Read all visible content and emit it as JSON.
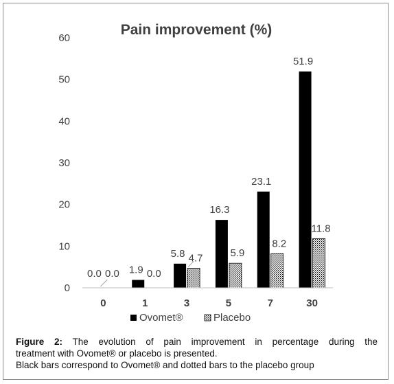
{
  "chart_data": {
    "type": "bar",
    "title": "Pain improvement (%)",
    "categories": [
      "0",
      "1",
      "3",
      "5",
      "7",
      "30"
    ],
    "series": [
      {
        "name": "Ovomet®",
        "values": [
          0.0,
          1.9,
          5.8,
          16.3,
          23.1,
          51.9
        ],
        "labels": [
          "0.0",
          "1.9",
          "5.8",
          "16.3",
          "23.1",
          "51.9"
        ],
        "fill": "solid"
      },
      {
        "name": "Placebo",
        "values": [
          0.0,
          0.0,
          4.7,
          5.9,
          8.2,
          11.8
        ],
        "labels": [
          "0.0",
          "0.0",
          "4.7",
          "5.9",
          "8.2",
          "11.8"
        ],
        "fill": "dotted"
      }
    ],
    "ylim": [
      0,
      60
    ],
    "yticks": [
      "0",
      "10",
      "20",
      "30",
      "40",
      "50",
      "60"
    ],
    "grid": false,
    "legend_position": "bottom",
    "colors": {
      "ovomet": "#000000",
      "placebo_pattern": "#000000",
      "axis": "#bfbfbf",
      "text": "#404040"
    }
  },
  "caption": {
    "figure_label": "Figure 2:",
    "line1": "The evolution of pain improvement in percentage during the",
    "line2": "treatment with Ovomet® or placebo is presented.",
    "line3": "Black bars correspond to Ovomet® and dotted bars to the placebo group"
  }
}
